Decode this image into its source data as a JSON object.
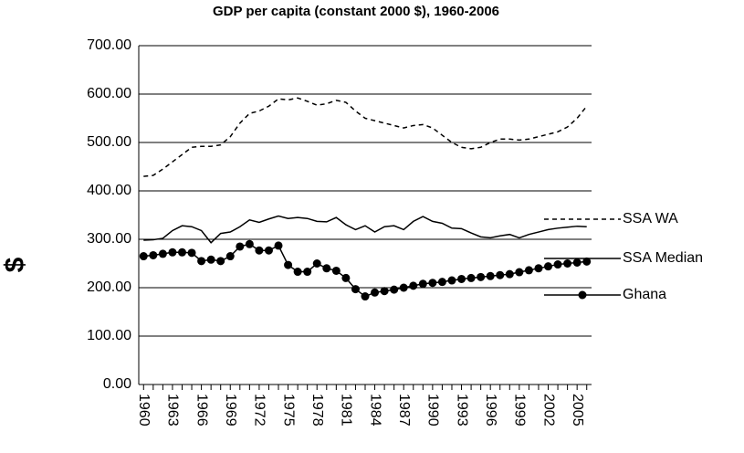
{
  "chart_data": {
    "type": "line",
    "title": "GDP per capita (constant 2000 $), 1960-2006",
    "y_label": "$",
    "x": [
      1960,
      1961,
      1962,
      1963,
      1964,
      1965,
      1966,
      1967,
      1968,
      1969,
      1970,
      1971,
      1972,
      1973,
      1974,
      1975,
      1976,
      1977,
      1978,
      1979,
      1980,
      1981,
      1982,
      1983,
      1984,
      1985,
      1986,
      1987,
      1988,
      1989,
      1990,
      1991,
      1992,
      1993,
      1994,
      1995,
      1996,
      1997,
      1998,
      1999,
      2000,
      2001,
      2002,
      2003,
      2004,
      2005,
      2006
    ],
    "xlim": [
      1959.5,
      2006.5
    ],
    "xticks": [
      1960,
      1963,
      1966,
      1969,
      1972,
      1975,
      1978,
      1981,
      1984,
      1987,
      1990,
      1993,
      1996,
      1999,
      2002,
      2005
    ],
    "ylim": [
      0,
      700
    ],
    "yticks": [
      {
        "value": 0,
        "label": "0.00"
      },
      {
        "value": 100,
        "label": "100.00"
      },
      {
        "value": 200,
        "label": "200.00"
      },
      {
        "value": 300,
        "label": "300.00"
      },
      {
        "value": 400,
        "label": "400.00"
      },
      {
        "value": 500,
        "label": "500.00"
      },
      {
        "value": 600,
        "label": "600.00"
      },
      {
        "value": 700,
        "label": "700.00"
      }
    ],
    "grid": true,
    "legend": "right",
    "series": [
      {
        "name": "SSA WA",
        "color": "#000000",
        "style": "dashed",
        "values": [
          430,
          432,
          445,
          460,
          475,
          490,
          492,
          492,
          495,
          512,
          540,
          560,
          565,
          575,
          590,
          588,
          592,
          585,
          577,
          580,
          587,
          583,
          565,
          550,
          545,
          540,
          535,
          530,
          535,
          537,
          530,
          515,
          500,
          490,
          487,
          490,
          500,
          507,
          507,
          505,
          507,
          512,
          517,
          522,
          532,
          550,
          575
        ]
      },
      {
        "name": "SSA Median",
        "color": "#000000",
        "style": "solid",
        "values": [
          298,
          299,
          302,
          318,
          328,
          326,
          318,
          293,
          312,
          315,
          326,
          340,
          335,
          342,
          348,
          343,
          345,
          343,
          337,
          336,
          345,
          330,
          320,
          328,
          315,
          326,
          328,
          320,
          337,
          347,
          337,
          333,
          323,
          322,
          313,
          305,
          303,
          307,
          310,
          303,
          310,
          315,
          320,
          323,
          325,
          327,
          326
        ]
      },
      {
        "name": "Ghana",
        "color": "#000000",
        "style": "markers",
        "values": [
          265,
          267,
          270,
          273,
          273,
          272,
          255,
          258,
          255,
          265,
          285,
          290,
          277,
          277,
          287,
          247,
          233,
          233,
          250,
          240,
          235,
          220,
          197,
          182,
          190,
          193,
          196,
          200,
          204,
          208,
          210,
          212,
          215,
          218,
          220,
          222,
          224,
          226,
          228,
          232,
          236,
          240,
          244,
          248,
          250,
          252,
          254
        ]
      }
    ]
  }
}
